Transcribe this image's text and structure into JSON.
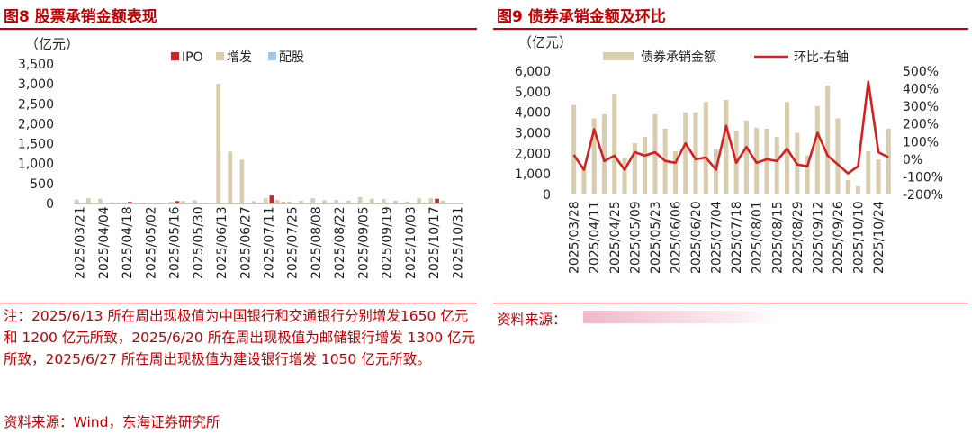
{
  "left": {
    "title": "图8  股票承销金额表现",
    "unit": "（亿元）",
    "note": "注：2025/6/13 所在周出现极值为中国银行和交通银行分别增发1650 亿元和 1200 亿元所致，2025/6/20 所在周出现极值为邮储银行增发 1300 亿元所致，2025/6/27 所在周出现极值为建设银行增发 1050 亿元所致。",
    "source": "资料来源：Wind，东海证券研究所"
  },
  "right": {
    "title": "图9  债券承销金额及环比",
    "unit": "（亿元）",
    "source": "资料来源："
  },
  "colors": {
    "title_red": "#c00000",
    "ipo": "#c62828",
    "seo": "#d9cdb0",
    "rights": "#9ec7e8",
    "line": "#d32020"
  },
  "chart_data": [
    {
      "type": "bar",
      "ylim": [
        0,
        3500
      ],
      "yticks": [
        0,
        500,
        1000,
        1500,
        2000,
        2500,
        3000,
        3500
      ],
      "ytick_labels": [
        "0",
        "500",
        "1,000",
        "1,500",
        "2,000",
        "2,500",
        "3,000",
        "3,500"
      ],
      "tick_labels": [
        "2025/03/21",
        "2025/04/04",
        "2025/04/18",
        "2025/05/02",
        "2025/05/16",
        "2025/05/30",
        "2025/06/13",
        "2025/06/27",
        "2025/07/11",
        "2025/07/25",
        "2025/08/08",
        "2025/08/22",
        "2025/09/05",
        "2025/09/19",
        "2025/10/03",
        "2025/10/17",
        "2025/10/31"
      ],
      "categories": [
        "2025/03/21",
        "2025/03/28",
        "2025/04/04",
        "2025/04/11",
        "2025/04/18",
        "2025/04/25",
        "2025/05/02",
        "2025/05/09",
        "2025/05/16",
        "2025/05/23",
        "2025/05/30",
        "2025/06/06",
        "2025/06/13",
        "2025/06/20",
        "2025/06/27",
        "2025/07/04",
        "2025/07/11",
        "2025/07/18",
        "2025/07/25",
        "2025/08/01",
        "2025/08/08",
        "2025/08/15",
        "2025/08/22",
        "2025/08/29",
        "2025/09/05",
        "2025/09/12",
        "2025/09/19",
        "2025/09/26",
        "2025/10/03",
        "2025/10/10",
        "2025/10/17",
        "2025/10/24",
        "2025/10/31"
      ],
      "series": [
        {
          "name": "IPO",
          "values": [
            10,
            5,
            0,
            20,
            40,
            15,
            0,
            10,
            60,
            10,
            5,
            0,
            0,
            0,
            10,
            15,
            200,
            30,
            10,
            5,
            15,
            10,
            5,
            10,
            15,
            20,
            10,
            5,
            0,
            20,
            120,
            10,
            0
          ]
        },
        {
          "name": "增发",
          "values": [
            100,
            130,
            120,
            30,
            20,
            0,
            10,
            20,
            40,
            60,
            80,
            20,
            3000,
            1300,
            1100,
            60,
            130,
            90,
            50,
            70,
            130,
            80,
            90,
            70,
            160,
            120,
            110,
            70,
            50,
            130,
            130,
            70,
            0
          ]
        },
        {
          "name": "配股",
          "values": [
            0,
            0,
            0,
            0,
            0,
            0,
            0,
            0,
            0,
            0,
            0,
            0,
            0,
            0,
            0,
            0,
            0,
            0,
            0,
            0,
            0,
            0,
            0,
            0,
            0,
            0,
            0,
            0,
            0,
            0,
            0,
            0,
            0
          ]
        }
      ]
    },
    {
      "type": "bar+line",
      "ylim": [
        0,
        6000
      ],
      "yticks": [
        0,
        1000,
        2000,
        3000,
        4000,
        5000,
        6000
      ],
      "ytick_labels": [
        "0",
        "1,000",
        "2,000",
        "3,000",
        "4,000",
        "5,000",
        "6,000"
      ],
      "y2lim": [
        -200,
        500
      ],
      "y2ticks": [
        -200,
        -100,
        0,
        100,
        200,
        300,
        400,
        500
      ],
      "y2tick_labels": [
        "-200%",
        "-100%",
        "0%",
        "100%",
        "200%",
        "300%",
        "400%",
        "500%"
      ],
      "tick_labels": [
        "2025/03/28",
        "2025/04/11",
        "2025/04/25",
        "2025/05/09",
        "2025/05/23",
        "2025/06/06",
        "2025/06/20",
        "2025/07/04",
        "2025/07/18",
        "2025/08/01",
        "2025/08/15",
        "2025/08/29",
        "2025/09/12",
        "2025/09/26",
        "2025/10/10",
        "2025/10/24"
      ],
      "categories": [
        "2025/03/28",
        "2025/04/04",
        "2025/04/11",
        "2025/04/18",
        "2025/04/25",
        "2025/05/02",
        "2025/05/09",
        "2025/05/16",
        "2025/05/23",
        "2025/05/30",
        "2025/06/06",
        "2025/06/13",
        "2025/06/20",
        "2025/06/27",
        "2025/07/04",
        "2025/07/11",
        "2025/07/18",
        "2025/07/25",
        "2025/08/01",
        "2025/08/08",
        "2025/08/15",
        "2025/08/22",
        "2025/08/29",
        "2025/09/05",
        "2025/09/12",
        "2025/09/19",
        "2025/09/26",
        "2025/10/03",
        "2025/10/10",
        "2025/10/17",
        "2025/10/24",
        "2025/10/31"
      ],
      "series": [
        {
          "name": "债券承销金额",
          "axis": "left",
          "values": [
            4350,
            1400,
            3700,
            3900,
            4900,
            1800,
            2500,
            2800,
            3900,
            3200,
            2100,
            4000,
            4000,
            4500,
            2200,
            4600,
            3100,
            3600,
            3250,
            3200,
            2800,
            4500,
            3000,
            1900,
            4300,
            5300,
            3700,
            700,
            400,
            2100,
            1700,
            3200
          ]
        },
        {
          "name": "环比-右轴",
          "axis": "right",
          "values": [
            25,
            -60,
            170,
            -10,
            20,
            -60,
            40,
            20,
            40,
            -10,
            -20,
            90,
            0,
            10,
            -60,
            190,
            -20,
            70,
            -20,
            0,
            -10,
            60,
            -30,
            -40,
            150,
            20,
            -30,
            -80,
            -40,
            440,
            40,
            10
          ]
        }
      ]
    }
  ]
}
